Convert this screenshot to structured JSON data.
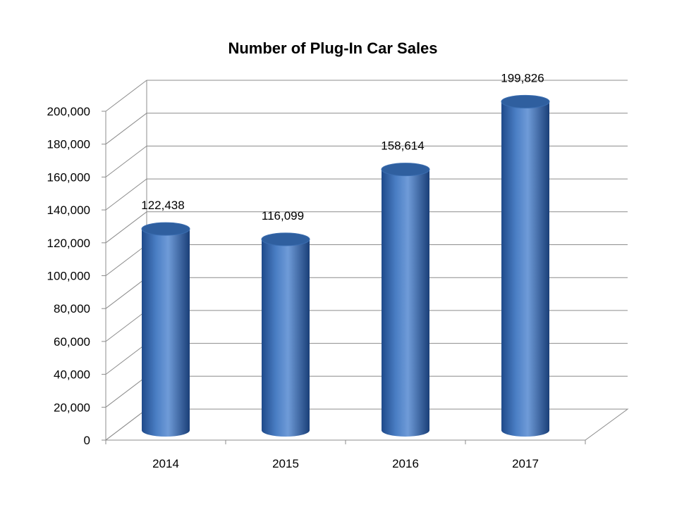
{
  "chart_data": {
    "type": "bar",
    "style": "3d-cylinder",
    "title": "Number of Plug-In Car Sales",
    "xlabel": "",
    "ylabel": "",
    "categories": [
      "2014",
      "2015",
      "2016",
      "2017"
    ],
    "series": [
      {
        "values": [
          122438,
          116099,
          158614,
          199826
        ]
      }
    ],
    "data_labels": [
      "122,438",
      "116,099",
      "158,614",
      "199,826"
    ],
    "ylim": [
      0,
      200000
    ],
    "ytick_labels": [
      "0",
      "20,000",
      "40,000",
      "60,000",
      "80,000",
      "100,000",
      "120,000",
      "140,000",
      "160,000",
      "180,000",
      "200,000"
    ],
    "grid": true,
    "legend": "none",
    "colors": {
      "bar": "#4a7ec4",
      "bar_dark": "#1f4a8a",
      "bar_top": "#2f5f9f",
      "grid": "#8c8c8c"
    }
  }
}
